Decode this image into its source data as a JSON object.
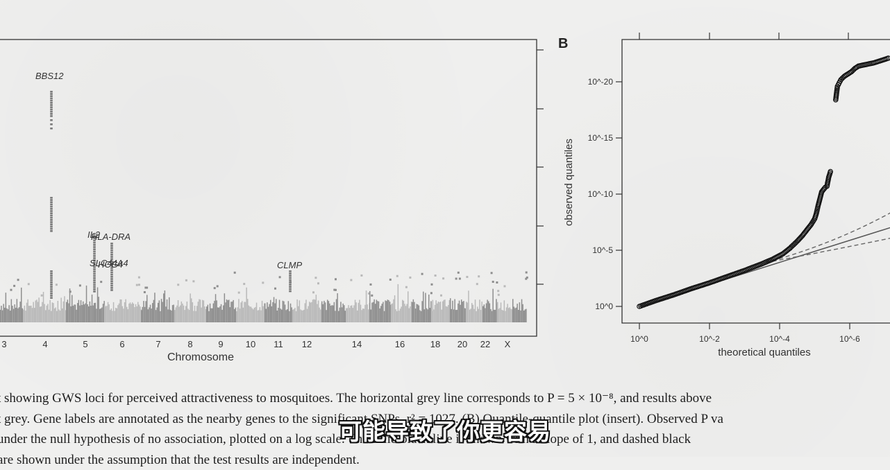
{
  "panel_b_letter": "B",
  "caption_lines": [
    "t showing GWS loci for perceived attractiveness to mosquitoes. The horizontal grey line corresponds to P = 5 × 10⁻⁸, and results above",
    "t grey. Gene labels are annotated as the nearby genes to the significant SNPs. r² = 1027. (B) Quantile-quantile plot (insert). Observed P va",
    "under the null hypothesis of no association, plotted on a log scale. The solid black line is shown with a slope of 1, and dashed black",
    "are shown under the assumption that the test results are independent."
  ],
  "subtitle": "可能导致了你更容易",
  "chart_data": [
    {
      "type": "scatter",
      "name": "manhattan",
      "xlabel": "Chromosome",
      "ylabel": "",
      "x_tick_labels": [
        "3",
        "4",
        "5",
        "6",
        "7",
        "8",
        "9",
        "10",
        "11",
        "12",
        "14",
        "16",
        "18",
        "20",
        "22",
        "X"
      ],
      "gene_labels": [
        "BBS12",
        "IL2",
        "HLA-DRA",
        "SLC44A4",
        "HCG4",
        "CLMP"
      ],
      "chromosome_colors": [
        "#8e8e8e",
        "#b9b9b9"
      ],
      "significant_loci": [
        {
          "gene": "BBS12",
          "chromosome": "4"
        },
        {
          "gene": "IL2",
          "chromosome": "5"
        },
        {
          "gene": "HLA-DRA",
          "chromosome": "6"
        },
        {
          "gene": "SLC44A4",
          "chromosome": "6"
        },
        {
          "gene": "HCG4",
          "chromosome": "6"
        },
        {
          "gene": "CLMP",
          "chromosome": "11"
        }
      ]
    },
    {
      "type": "scatter",
      "name": "qq-plot",
      "panel": "B",
      "xlabel": "theoretical quantiles",
      "ylabel": "observed quantiles",
      "x_ticks": [
        0,
        2,
        4,
        6
      ],
      "x_tick_labels": [
        "10^0",
        "10^-2",
        "10^-4",
        "10^-6"
      ],
      "y_ticks": [
        0,
        5,
        10,
        15,
        20
      ],
      "y_tick_labels": [
        "10^0",
        "10^-5",
        "10^-10",
        "10^-15",
        "10^-20"
      ],
      "xlim": [
        -0.3,
        7.2
      ],
      "ylim": [
        -1.6,
        22.8
      ],
      "series": [
        {
          "style": "points",
          "points": [
            [
              0,
              0
            ],
            [
              0.5,
              0.55
            ],
            [
              1,
              1.05
            ],
            [
              1.5,
              1.6
            ],
            [
              2,
              2.1
            ],
            [
              2.5,
              2.65
            ],
            [
              3,
              3.2
            ],
            [
              3.5,
              3.8
            ],
            [
              3.8,
              4.2
            ],
            [
              4.1,
              4.7
            ],
            [
              4.3,
              5.2
            ],
            [
              4.5,
              5.8
            ],
            [
              4.65,
              6.3
            ],
            [
              4.8,
              6.9
            ],
            [
              4.9,
              7.3
            ],
            [
              5.0,
              7.8
            ],
            [
              5.05,
              8.3
            ],
            [
              5.1,
              9.0
            ],
            [
              5.15,
              9.6
            ],
            [
              5.2,
              10.2
            ],
            [
              5.25,
              10.4
            ],
            [
              5.3,
              10.6
            ],
            [
              5.35,
              10.7
            ],
            [
              5.4,
              11.5
            ],
            [
              5.45,
              12.0
            ],
            [
              5.6,
              18.4
            ],
            [
              5.62,
              18.9
            ],
            [
              5.65,
              19.6
            ],
            [
              5.7,
              19.9
            ],
            [
              5.75,
              20.2
            ],
            [
              5.85,
              20.5
            ],
            [
              5.95,
              20.7
            ],
            [
              6.05,
              20.9
            ],
            [
              6.15,
              21.2
            ],
            [
              6.25,
              21.4
            ],
            [
              6.4,
              21.5
            ],
            [
              6.55,
              21.6
            ],
            [
              6.7,
              21.7
            ],
            [
              6.9,
              21.9
            ],
            [
              7.1,
              22.1
            ]
          ]
        }
      ],
      "reference_lines": [
        {
          "style": "solid",
          "slope": 1
        },
        {
          "style": "dashed",
          "bound": "upper"
        },
        {
          "style": "dashed",
          "bound": "lower"
        }
      ]
    }
  ]
}
